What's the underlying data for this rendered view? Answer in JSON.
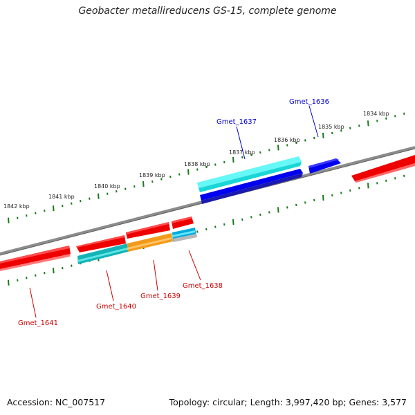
{
  "title": "Geobacter metallireducens GS-15, complete genome",
  "footer": {
    "accession": "Accession: NC_007517",
    "summary": "Topology: circular; Length: 3,997,420 bp; Genes: 3,577"
  },
  "colors": {
    "backbone": "#7a7a7a",
    "tick": "#1a7a1a",
    "forward_gene": "#0000ee",
    "forward_cds": "#33f0f0",
    "reverse_gene": "#ee0000",
    "reverse_cds": "#14b3b8",
    "orange": "#f29a1a",
    "label_forward": "#0000cc",
    "label_reverse": "#cc0000"
  },
  "kbp_labels": [
    "1842 kbp",
    "1841 kbp",
    "1840 kbp",
    "1839 kbp",
    "1838 kbp",
    "1837 kbp",
    "1836 kbp",
    "1835 kbp",
    "1834 kbp"
  ],
  "genes": {
    "forward": [
      "Gmet_1637",
      "Gmet_1636"
    ],
    "reverse": [
      "Gmet_1641",
      "Gmet_1640",
      "Gmet_1639",
      "Gmet_1638"
    ]
  }
}
